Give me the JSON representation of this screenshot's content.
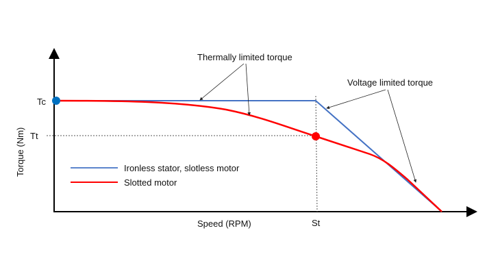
{
  "diagram": {
    "y_axis_label": "Torque (Nm)",
    "x_axis_label": "Speed (RPM)",
    "y_ticks": {
      "tc": "Tc",
      "tt": "Tt"
    },
    "x_ticks": {
      "st": "St"
    },
    "annotations": {
      "thermal": "Thermally limited torque",
      "voltage": "Voltage limited torque"
    },
    "legend": [
      {
        "label": "Ironless stator, slotless motor",
        "color": "#4472c4"
      },
      {
        "label": "Slotted motor",
        "color": "#ff0000"
      }
    ],
    "markers": {
      "tc_color": "#0070c0",
      "tt_color": "#ff0000"
    }
  }
}
